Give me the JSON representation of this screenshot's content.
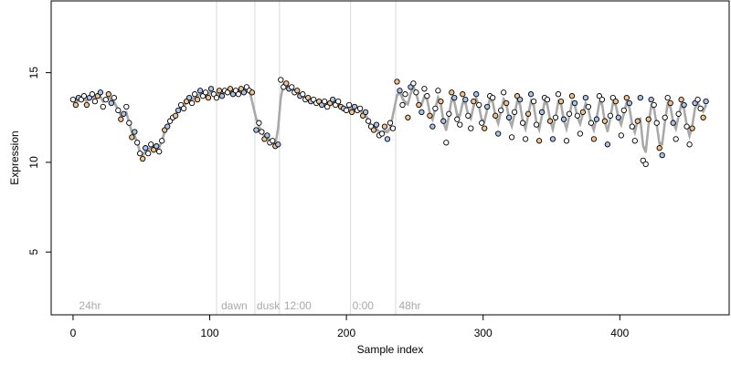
{
  "chart_data": {
    "type": "line",
    "title": "",
    "xlabel": "Sample index",
    "ylabel": "Expression",
    "xlim": [
      -16,
      480
    ],
    "ylim": [
      1.5,
      19
    ],
    "x_ticks": [
      0,
      100,
      200,
      300,
      400
    ],
    "y_ticks": [
      5,
      10,
      15
    ],
    "grid": false,
    "legend": "none",
    "region_boundaries": [
      105,
      133,
      151,
      203,
      236
    ],
    "region_labels": [
      {
        "x": 3,
        "label": "24hr"
      },
      {
        "x": 107,
        "label": "dawn"
      },
      {
        "x": 133,
        "label": "dusk"
      },
      {
        "x": 153,
        "label": "12:00"
      },
      {
        "x": 203,
        "label": "0:00"
      },
      {
        "x": 237,
        "label": "48hr"
      }
    ],
    "observed_points": [
      [
        0,
        13.5
      ],
      [
        2,
        13.2
      ],
      [
        4,
        13.6
      ],
      [
        6,
        13.5
      ],
      [
        8,
        13.7
      ],
      [
        10,
        13.2
      ],
      [
        12,
        13.6
      ],
      [
        14,
        13.8
      ],
      [
        16,
        13.4
      ],
      [
        18,
        13.7
      ],
      [
        20,
        13.9
      ],
      [
        22,
        13.1
      ],
      [
        24,
        13.5
      ],
      [
        26,
        13.8
      ],
      [
        28,
        13.3
      ],
      [
        30,
        13.6
      ],
      [
        33,
        12.9
      ],
      [
        35,
        12.4
      ],
      [
        37,
        12.7
      ],
      [
        39,
        13.1
      ],
      [
        41,
        12.2
      ],
      [
        43,
        11.4
      ],
      [
        45,
        11.7
      ],
      [
        47,
        11.1
      ],
      [
        49,
        10.5
      ],
      [
        51,
        10.2
      ],
      [
        53,
        10.8
      ],
      [
        55,
        10.5
      ],
      [
        57,
        11.0
      ],
      [
        59,
        10.7
      ],
      [
        61,
        10.9
      ],
      [
        63,
        10.6
      ],
      [
        65,
        11.2
      ],
      [
        67,
        11.8
      ],
      [
        69,
        12.0
      ],
      [
        71,
        12.3
      ],
      [
        73,
        12.5
      ],
      [
        75,
        12.6
      ],
      [
        77,
        12.9
      ],
      [
        79,
        13.2
      ],
      [
        81,
        13.0
      ],
      [
        83,
        13.4
      ],
      [
        85,
        13.6
      ],
      [
        87,
        13.3
      ],
      [
        89,
        13.8
      ],
      [
        91,
        13.5
      ],
      [
        93,
        14.0
      ],
      [
        95,
        13.7
      ],
      [
        97,
        13.9
      ],
      [
        99,
        13.6
      ],
      [
        101,
        14.1
      ],
      [
        103,
        13.8
      ],
      [
        105,
        13.6
      ],
      [
        107,
        14.0
      ],
      [
        109,
        13.7
      ],
      [
        111,
        14.0
      ],
      [
        113,
        13.9
      ],
      [
        115,
        14.1
      ],
      [
        117,
        13.8
      ],
      [
        119,
        14.0
      ],
      [
        121,
        13.8
      ],
      [
        123,
        14.1
      ],
      [
        125,
        13.9
      ],
      [
        127,
        14.2
      ],
      [
        129,
        14.0
      ],
      [
        131,
        13.9
      ],
      [
        134,
        11.8
      ],
      [
        136,
        12.2
      ],
      [
        138,
        11.7
      ],
      [
        140,
        11.3
      ],
      [
        142,
        11.5
      ],
      [
        144,
        11.1
      ],
      [
        146,
        11.2
      ],
      [
        148,
        10.9
      ],
      [
        150,
        11.0
      ],
      [
        152,
        14.6
      ],
      [
        154,
        14.2
      ],
      [
        156,
        14.4
      ],
      [
        158,
        14.1
      ],
      [
        160,
        14.2
      ],
      [
        162,
        13.9
      ],
      [
        164,
        14.0
      ],
      [
        166,
        13.7
      ],
      [
        168,
        13.8
      ],
      [
        170,
        13.5
      ],
      [
        172,
        13.6
      ],
      [
        174,
        13.4
      ],
      [
        176,
        13.5
      ],
      [
        178,
        13.3
      ],
      [
        180,
        13.4
      ],
      [
        182,
        13.2
      ],
      [
        184,
        13.4
      ],
      [
        186,
        13.1
      ],
      [
        188,
        13.3
      ],
      [
        190,
        13.5
      ],
      [
        192,
        13.2
      ],
      [
        194,
        13.4
      ],
      [
        196,
        13.1
      ],
      [
        198,
        13.0
      ],
      [
        200,
        12.9
      ],
      [
        202,
        13.2
      ],
      [
        204,
        12.8
      ],
      [
        206,
        13.1
      ],
      [
        208,
        12.9
      ],
      [
        210,
        13.0
      ],
      [
        212,
        12.6
      ],
      [
        214,
        12.8
      ],
      [
        216,
        12.3
      ],
      [
        218,
        12.0
      ],
      [
        220,
        11.8
      ],
      [
        222,
        12.1
      ],
      [
        224,
        11.5
      ],
      [
        226,
        11.6
      ],
      [
        228,
        12.0
      ],
      [
        230,
        11.3
      ],
      [
        232,
        12.2
      ],
      [
        234,
        11.9
      ],
      [
        237,
        14.5
      ],
      [
        239,
        14.0
      ],
      [
        241,
        13.2
      ],
      [
        243,
        13.8
      ],
      [
        245,
        12.5
      ],
      [
        247,
        14.2
      ],
      [
        249,
        14.4
      ],
      [
        251,
        13.9
      ],
      [
        253,
        13.2
      ],
      [
        255,
        12.8
      ],
      [
        257,
        14.1
      ],
      [
        259,
        13.7
      ],
      [
        261,
        12.6
      ],
      [
        263,
        12.0
      ],
      [
        265,
        13.0
      ],
      [
        267,
        14.0
      ],
      [
        269,
        13.4
      ],
      [
        271,
        12.3
      ],
      [
        273,
        11.1
      ],
      [
        275,
        12.7
      ],
      [
        277,
        13.9
      ],
      [
        279,
        13.6
      ],
      [
        281,
        12.4
      ],
      [
        283,
        12.1
      ],
      [
        285,
        13.8
      ],
      [
        287,
        13.5
      ],
      [
        289,
        12.6
      ],
      [
        291,
        11.9
      ],
      [
        293,
        13.4
      ],
      [
        295,
        13.8
      ],
      [
        297,
        13.2
      ],
      [
        299,
        12.2
      ],
      [
        301,
        11.9
      ],
      [
        303,
        13.1
      ],
      [
        305,
        13.7
      ],
      [
        307,
        13.6
      ],
      [
        309,
        12.6
      ],
      [
        311,
        11.6
      ],
      [
        313,
        12.9
      ],
      [
        315,
        13.9
      ],
      [
        317,
        13.3
      ],
      [
        319,
        12.5
      ],
      [
        321,
        11.4
      ],
      [
        323,
        12.8
      ],
      [
        325,
        13.7
      ],
      [
        327,
        13.5
      ],
      [
        329,
        12.2
      ],
      [
        331,
        11.3
      ],
      [
        333,
        12.7
      ],
      [
        335,
        13.8
      ],
      [
        337,
        13.4
      ],
      [
        339,
        12.1
      ],
      [
        341,
        11.2
      ],
      [
        343,
        12.8
      ],
      [
        345,
        13.6
      ],
      [
        347,
        13.5
      ],
      [
        349,
        12.3
      ],
      [
        351,
        11.3
      ],
      [
        353,
        12.5
      ],
      [
        355,
        13.8
      ],
      [
        357,
        13.4
      ],
      [
        359,
        12.4
      ],
      [
        361,
        11.2
      ],
      [
        363,
        12.7
      ],
      [
        365,
        13.7
      ],
      [
        367,
        13.3
      ],
      [
        369,
        12.6
      ],
      [
        371,
        11.6
      ],
      [
        373,
        12.8
      ],
      [
        375,
        13.6
      ],
      [
        377,
        13.1
      ],
      [
        379,
        12.2
      ],
      [
        381,
        11.3
      ],
      [
        383,
        12.4
      ],
      [
        385,
        13.7
      ],
      [
        387,
        13.5
      ],
      [
        389,
        12.3
      ],
      [
        391,
        11.0
      ],
      [
        393,
        12.6
      ],
      [
        395,
        13.6
      ],
      [
        397,
        13.4
      ],
      [
        399,
        12.5
      ],
      [
        401,
        11.5
      ],
      [
        403,
        12.9
      ],
      [
        405,
        13.6
      ],
      [
        407,
        13.3
      ],
      [
        409,
        12.0
      ],
      [
        411,
        11.2
      ],
      [
        413,
        12.3
      ],
      [
        415,
        13.6
      ],
      [
        417,
        10.1
      ],
      [
        419,
        9.9
      ],
      [
        421,
        12.4
      ],
      [
        423,
        13.5
      ],
      [
        425,
        13.2
      ],
      [
        427,
        12.2
      ],
      [
        429,
        10.8
      ],
      [
        431,
        10.4
      ],
      [
        433,
        12.5
      ],
      [
        435,
        13.6
      ],
      [
        437,
        13.3
      ],
      [
        439,
        12.2
      ],
      [
        441,
        11.3
      ],
      [
        443,
        12.7
      ],
      [
        445,
        13.5
      ],
      [
        447,
        13.2
      ],
      [
        449,
        12.0
      ],
      [
        451,
        11.0
      ],
      [
        453,
        11.9
      ],
      [
        455,
        13.3
      ],
      [
        457,
        13.5
      ],
      [
        459,
        13.0
      ],
      [
        461,
        12.5
      ],
      [
        463,
        13.4
      ]
    ]
  }
}
